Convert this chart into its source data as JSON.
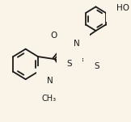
{
  "bg_color": "#faf4e8",
  "bond_color": "#1a1a1a",
  "lw": 1.3,
  "fs": 7.5,
  "xlim": [
    0.0,
    1.0
  ],
  "ylim": [
    0.05,
    1.0
  ]
}
